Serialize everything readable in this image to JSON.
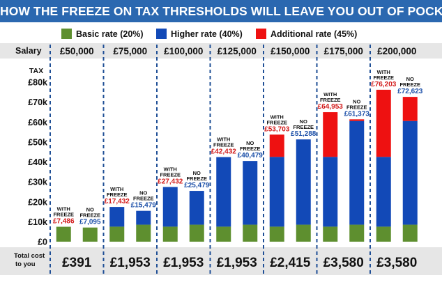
{
  "title": "HOW THE FREEZE ON TAX THRESHOLDS WILL LEAVE YOU OUT OF POCKET",
  "legend": [
    {
      "label": "Basic rate (20%)",
      "color": "#5e8f2f"
    },
    {
      "label": "Higher rate (40%)",
      "color": "#1249b7"
    },
    {
      "label": "Additional rate (45%)",
      "color": "#ee1111"
    }
  ],
  "row_labels": {
    "salary": "Salary",
    "tax": "TAX",
    "total_cost": [
      "Total cost",
      "to you"
    ]
  },
  "bar_labels": {
    "with": [
      "WITH",
      "FREEZE"
    ],
    "without": [
      "NO",
      "FREEZE"
    ]
  },
  "colors": {
    "with_value": "#d21a1a",
    "without_value": "#1b4fa8",
    "salary_band": "#e6e6e6",
    "divider": "#1f4f96"
  },
  "chart_data": {
    "type": "bar",
    "stacked": true,
    "ylabel": "TAX",
    "ylim": [
      0,
      80000
    ],
    "y_ticks": [
      "£0",
      "£10k",
      "£20k",
      "£30k",
      "£40k",
      "£50k",
      "£60k",
      "£70k",
      "£80k"
    ],
    "y_tick_values": [
      0,
      10000,
      20000,
      30000,
      40000,
      50000,
      60000,
      70000,
      80000
    ],
    "categories": [
      "£50,000",
      "£75,000",
      "£100,000",
      "£125,000",
      "£150,000",
      "£175,000",
      "£200,000"
    ],
    "total_cost": [
      "£391",
      "£1,953",
      "£1,953",
      "£1,953",
      "£2,415",
      "£3,580",
      "£3,580"
    ],
    "with_freeze": {
      "labels": [
        "£7,486",
        "£17,432",
        "£27,432",
        "£42,432",
        "£53,703",
        "£64,953",
        "£76,203"
      ],
      "totals": [
        7486,
        17432,
        27432,
        42432,
        53703,
        64953,
        76203
      ],
      "basic": [
        7486,
        7540,
        7540,
        7540,
        7540,
        7540,
        7540
      ],
      "higher": [
        0,
        9892,
        19892,
        34892,
        35000,
        35000,
        35000
      ],
      "additional": [
        0,
        0,
        0,
        0,
        11163,
        22413,
        33663
      ]
    },
    "no_freeze": {
      "labels": [
        "£7,095",
        "£15,479",
        "£25,479",
        "£40,479",
        "£51,288",
        "£61,373",
        "£72,623"
      ],
      "totals": [
        7095,
        15479,
        25479,
        40479,
        51288,
        61373,
        72623
      ],
      "basic": [
        7095,
        8540,
        8540,
        8540,
        8540,
        8540,
        8540
      ],
      "higher": [
        0,
        6939,
        16939,
        31939,
        42748,
        52000,
        52000
      ],
      "additional": [
        0,
        0,
        0,
        0,
        0,
        833,
        12083
      ]
    }
  }
}
